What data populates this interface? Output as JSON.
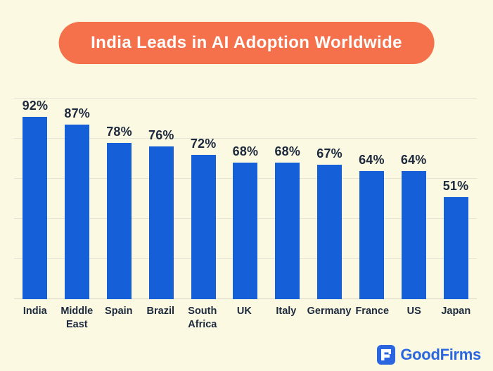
{
  "title": "India Leads in AI Adoption Worldwide",
  "colors": {
    "bg": "#FBF9E1",
    "accent": "#F4714B",
    "bar": "#1560D9",
    "ink": "#1D2A3E",
    "grid": "#E6E4D6",
    "grid_base": "#D9D6C7",
    "brand_blue": "#2B66E0"
  },
  "chart_data": {
    "type": "bar",
    "title": "India Leads in AI Adoption Worldwide",
    "categories": [
      "India",
      "Middle East",
      "Spain",
      "Brazil",
      "South Africa",
      "UK",
      "Italy",
      "Germany",
      "France",
      "US",
      "Japan"
    ],
    "values": [
      92,
      87,
      78,
      76,
      72,
      68,
      68,
      67,
      64,
      64,
      51
    ],
    "labels": [
      "92%",
      "87%",
      "78%",
      "76%",
      "72%",
      "68%",
      "68%",
      "67%",
      "64%",
      "64%",
      "51%"
    ],
    "xlabel": "",
    "ylabel": "",
    "ylim": [
      0,
      100
    ],
    "gridlines": [
      0,
      20,
      40,
      60,
      80,
      100
    ],
    "grid": true,
    "legend": false,
    "bar_color": "#1560D9"
  },
  "footer": {
    "brand": "GoodFirms",
    "logo_icon": "goodfirms-logo-icon"
  }
}
